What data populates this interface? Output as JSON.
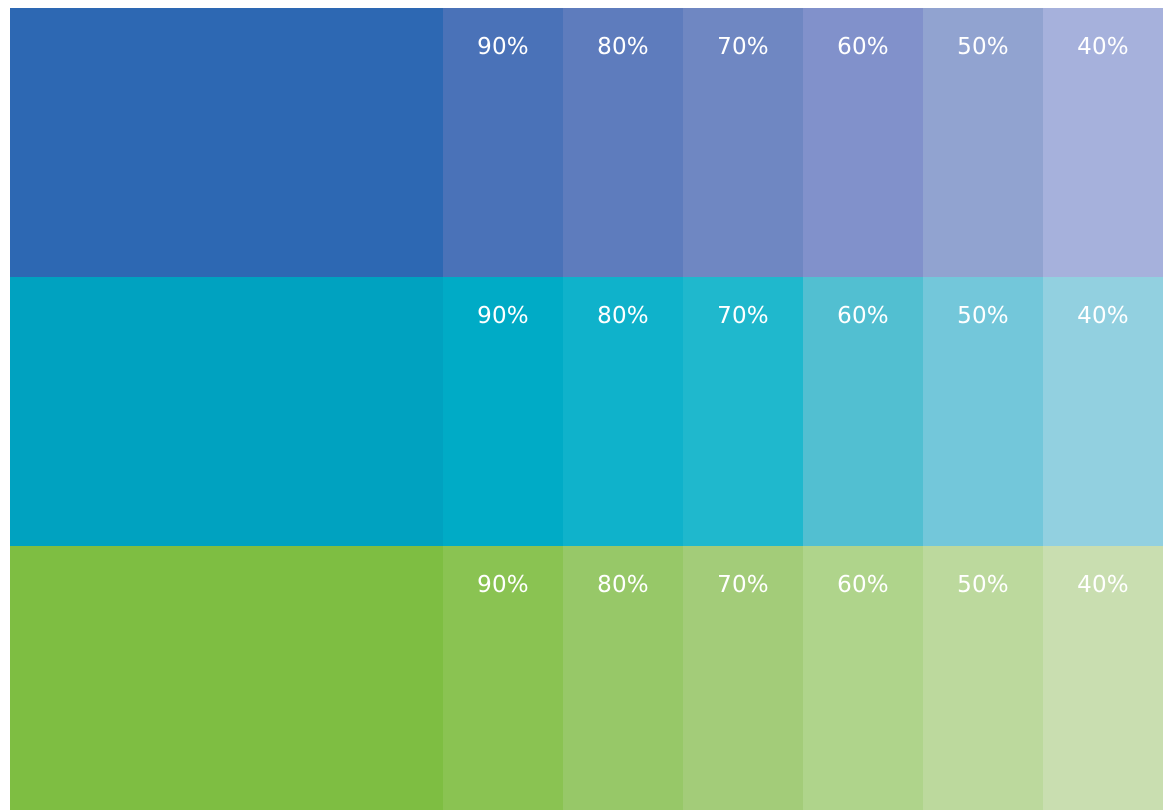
{
  "rows": [
    {
      "name": "blue",
      "base_color": "#2d68b3",
      "tints": [
        {
          "label": "90%",
          "color": "#4a72b8"
        },
        {
          "label": "80%",
          "color": "#5e7cbd"
        },
        {
          "label": "70%",
          "color": "#6f87c2"
        },
        {
          "label": "60%",
          "color": "#8191cb"
        },
        {
          "label": "50%",
          "color": "#91a3d0"
        },
        {
          "label": "40%",
          "color": "#a6b1dc"
        }
      ]
    },
    {
      "name": "teal",
      "base_color": "#00a2c0",
      "tints": [
        {
          "label": "90%",
          "color": "#00abc6"
        },
        {
          "label": "80%",
          "color": "#0fb2cb"
        },
        {
          "label": "70%",
          "color": "#1fb8cd"
        },
        {
          "label": "60%",
          "color": "#52bfd1"
        },
        {
          "label": "50%",
          "color": "#73c7da"
        },
        {
          "label": "40%",
          "color": "#92d0e0"
        }
      ]
    },
    {
      "name": "green",
      "base_color": "#7ebe42",
      "tints": [
        {
          "label": "90%",
          "color": "#8ac352"
        },
        {
          "label": "80%",
          "color": "#97c868"
        },
        {
          "label": "70%",
          "color": "#a3cc79"
        },
        {
          "label": "60%",
          "color": "#afd48b"
        },
        {
          "label": "50%",
          "color": "#bcd99d"
        },
        {
          "label": "40%",
          "color": "#c9deb0"
        }
      ]
    }
  ]
}
